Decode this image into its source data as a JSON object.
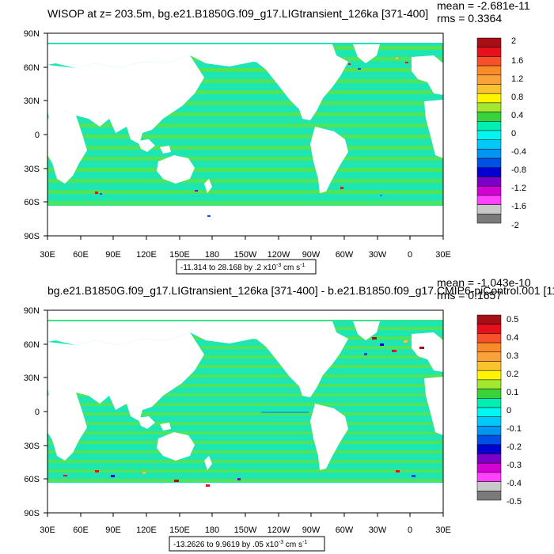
{
  "panels": [
    {
      "title": "WISOP at z= 203.5m, bg.e21.B1850G.f09_g17.LIGtransient_126ka [371-400]",
      "mean": "mean = -2.681e-11",
      "rms": "rms = 0.3364",
      "range_label": "-11.314 to 28.168 by .2 x10",
      "range_exp": "-3",
      "range_unit": " cm s",
      "range_unit_exp": "-1",
      "colorbar_labels": [
        "2",
        "1.6",
        "1.2",
        "0.8",
        "0.4",
        "0",
        "-0.4",
        "-0.8",
        "-1.2",
        "-1.6",
        "-2"
      ]
    },
    {
      "title": "bg.e21.B1850G.f09_g17.LIGtransient_126ka [371-400] - b.e21.B1850.f09_g17.CMIP6-piControl.001 [11",
      "mean": "mean = -1.043e-10",
      "rms": "rms = 0.1657",
      "range_label": "-13.2626 to 9.9619 by .05 x10",
      "range_exp": "-3",
      "range_unit": " cm s",
      "range_unit_exp": "-1",
      "colorbar_labels": [
        "0.5",
        "0.4",
        "0.3",
        "0.2",
        "0.1",
        "0",
        "-0.1",
        "-0.2",
        "-0.3",
        "-0.4",
        "-0.5"
      ]
    }
  ],
  "lat_labels": [
    "90N",
    "60N",
    "30N",
    "0",
    "30S",
    "60S",
    "90S"
  ],
  "lon_labels": [
    "30E",
    "60E",
    "90E",
    "120E",
    "150E",
    "180",
    "150W",
    "120W",
    "90W",
    "60W",
    "30W",
    "0",
    "30E"
  ],
  "colorbar_colors": [
    "#a50f15",
    "#e8101a",
    "#f8502a",
    "#f98c28",
    "#fba13a",
    "#f9c22f",
    "#fff500",
    "#a3e830",
    "#3ad23a",
    "#00eeb2",
    "#00f6ef",
    "#00c8f8",
    "#0096f2",
    "#0050e8",
    "#0000d0",
    "#7b00c8",
    "#d400d4",
    "#ff40ff",
    "#c8c8c8",
    "#7a7a7a"
  ],
  "ocean_color": "#1ee6b3"
}
